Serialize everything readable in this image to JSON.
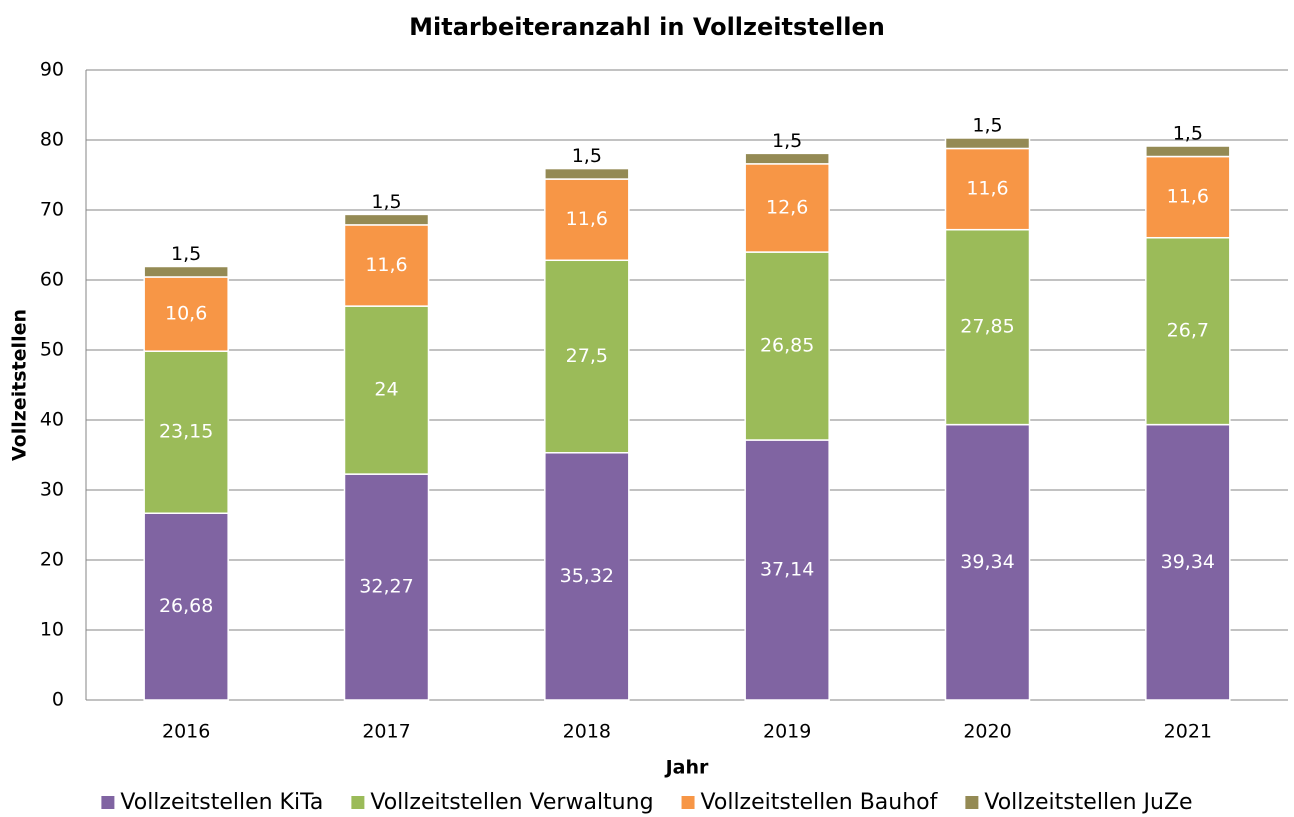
{
  "chart_data": {
    "type": "stacked_bar",
    "title": "Mitarbeiteranzahl in Vollzeitstellen",
    "x_label": "Jahr",
    "y_label": "Vollzeitstellen",
    "categories": [
      "2016",
      "2017",
      "2018",
      "2019",
      "2020",
      "2021"
    ],
    "series": [
      {
        "name": "Vollzeitstellen KiTa",
        "color": "#8064a2",
        "values": [
          26.68,
          32.27,
          35.32,
          37.14,
          39.34,
          39.34
        ],
        "value_labels": [
          "26,68",
          "32,27",
          "35,32",
          "37,14",
          "39,34",
          "39,34"
        ]
      },
      {
        "name": "Vollzeitstellen Verwaltung",
        "color": "#9bbb59",
        "values": [
          23.15,
          24,
          27.5,
          26.85,
          27.85,
          26.7
        ],
        "value_labels": [
          "23,15",
          "24",
          "27,5",
          "26,85",
          "27,85",
          "26,7"
        ]
      },
      {
        "name": "Vollzeitstellen Bauhof",
        "color": "#f79646",
        "values": [
          10.6,
          11.6,
          11.6,
          12.6,
          11.6,
          11.6
        ],
        "value_labels": [
          "10,6",
          "11,6",
          "11,6",
          "12,6",
          "11,6",
          "11,6"
        ]
      },
      {
        "name": "Vollzeitstellen JuZe",
        "color": "#948a54",
        "values": [
          1.5,
          1.5,
          1.5,
          1.5,
          1.5,
          1.5
        ],
        "value_labels": [
          "1,5",
          "1,5",
          "1,5",
          "1,5",
          "1,5",
          "1,5"
        ]
      }
    ],
    "ylim": [
      0,
      90
    ],
    "yticks": [
      0,
      10,
      20,
      30,
      40,
      50,
      60,
      70,
      80,
      90
    ],
    "grid": true,
    "legend": "bottom"
  }
}
